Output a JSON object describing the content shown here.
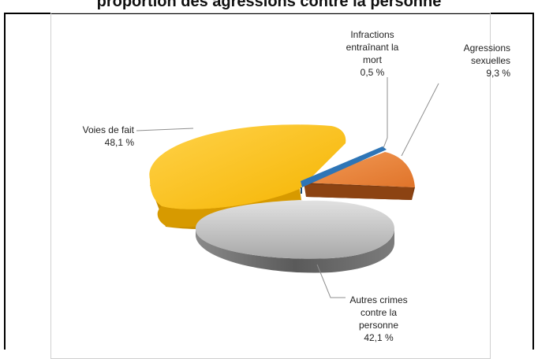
{
  "title": "proportion des agressions contre la personne",
  "chart_data": {
    "type": "pie",
    "slices": [
      {
        "name": "Infractions entraînant la mort",
        "value": 0.5,
        "label": "0,5 %",
        "color": "#2e75b6"
      },
      {
        "name": "Agressions sexuelles",
        "value": 9.3,
        "label": "9,3 %",
        "color": "#ed7d31"
      },
      {
        "name": "Autres crimes contre la personne",
        "value": 42.1,
        "label": "42,1 %",
        "color": "#a5a5a5"
      },
      {
        "name": "Voies de fait",
        "value": 48.1,
        "label": "48,1 %",
        "color": "#ffc000"
      }
    ],
    "legend": "none",
    "exploded": true,
    "three_d": true
  },
  "labels": {
    "infr_l1": "Infractions",
    "infr_l2": "entraînant la",
    "infr_l3": "mort",
    "infr_pct": "0,5 %",
    "agr_l1": "Agressions",
    "agr_l2": "sexuelles",
    "agr_pct": "9,3 %",
    "autres_l1": "Autres crimes",
    "autres_l2": "contre la",
    "autres_l3": "personne",
    "autres_pct": "42,1 %",
    "voies_l1": "Voies de fait",
    "voies_pct": "48,1 %"
  }
}
